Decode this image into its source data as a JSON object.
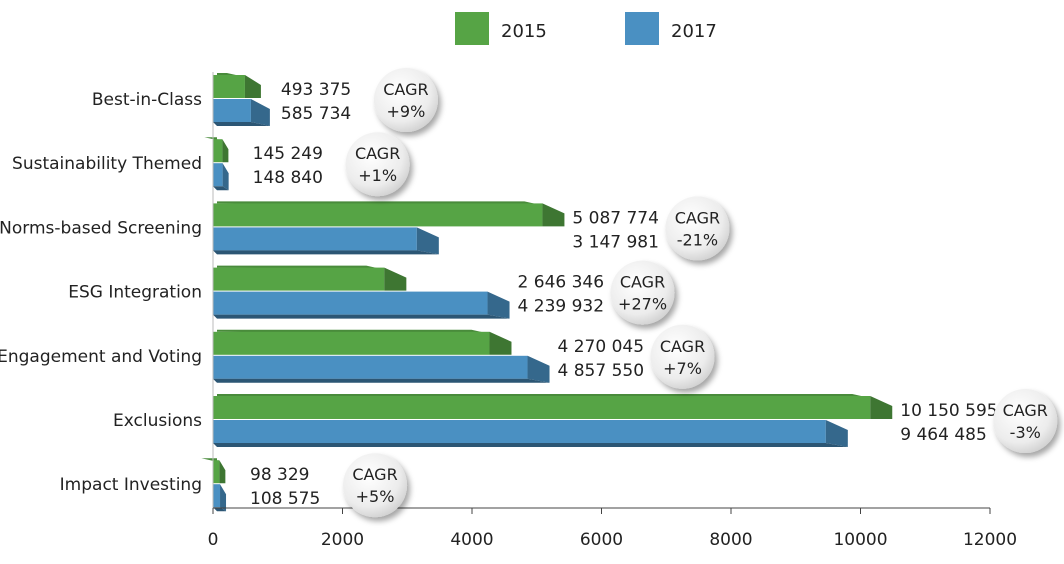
{
  "chart_data": {
    "type": "bar",
    "orientation": "horizontal",
    "title": "",
    "xlabel": "",
    "ylabel": "",
    "xlim": [
      0,
      12000
    ],
    "x_ticks": [
      "0",
      "2000",
      "4000",
      "6000",
      "8000",
      "10000",
      "12000"
    ],
    "legend_position": "top-center",
    "categories": [
      "Best-in-Class",
      "Sustainability Themed",
      "Norms-based Screening",
      "ESG Integration",
      "Engagement and Voting",
      "Exclusions",
      "Impact Investing"
    ],
    "series": [
      {
        "name": "2015",
        "color": "#56a445",
        "values": [
          493.375,
          145.249,
          5087.774,
          2646.346,
          4270.045,
          10150.595,
          98.329
        ],
        "labels": [
          "493 375",
          "145 249",
          "5 087 774",
          "2 646 346",
          "4 270 045",
          "10 150 595",
          "98 329"
        ]
      },
      {
        "name": "2017",
        "color": "#4a90c2",
        "values": [
          585.734,
          148.84,
          3147.981,
          4239.932,
          4857.55,
          9464.485,
          108.575
        ],
        "labels": [
          "585 734",
          "148 840",
          "3 147 981",
          "4 239 932",
          "4 857 550",
          "9 464 485",
          "108 575"
        ]
      }
    ],
    "cagr_title": "CAGR",
    "cagr": [
      "+9%",
      "+1%",
      "-21%",
      "+27%",
      "+7%",
      "-3%",
      "+5%"
    ]
  }
}
